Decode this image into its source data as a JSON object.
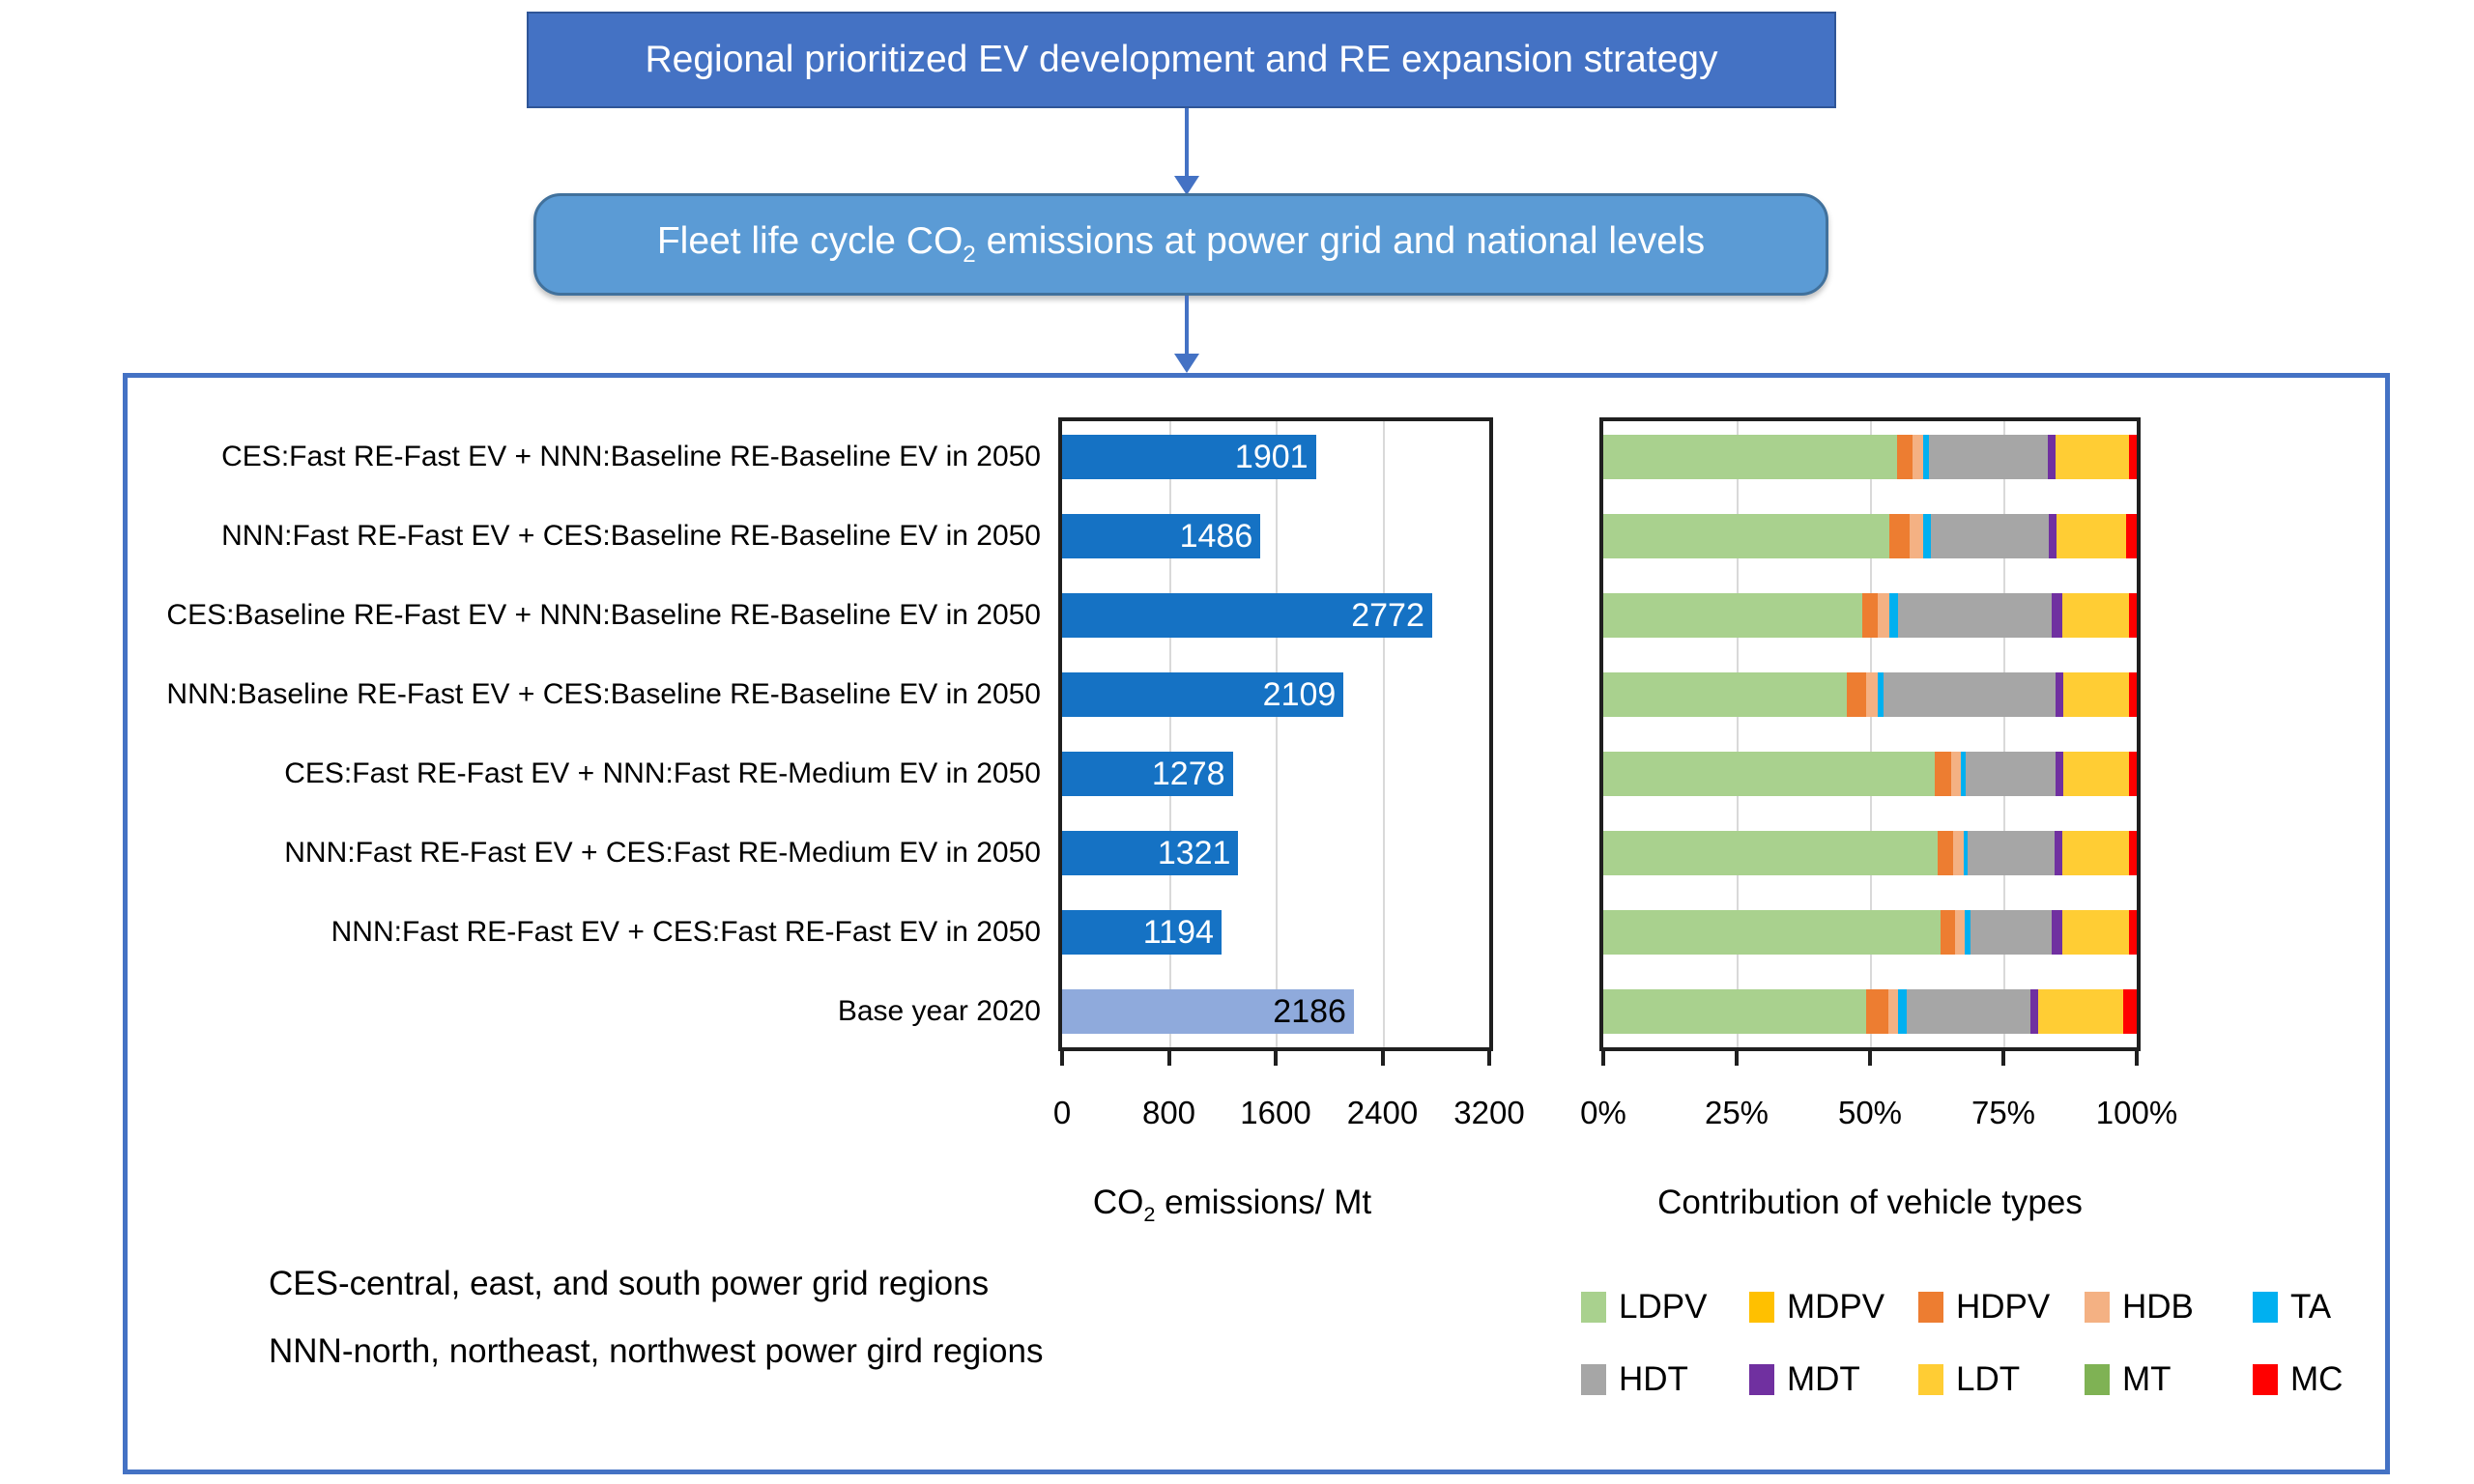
{
  "flowchart": {
    "top_box": "Regional prioritized EV development and RE expansion strategy",
    "mid_box_pre": "Fleet life cycle CO",
    "mid_box_sub": "2",
    "mid_box_post": " emissions at power grid and national levels",
    "top_box_fill": "#4472C4",
    "mid_box_fill": "#5B9BD5",
    "arrow_color": "#4472C4"
  },
  "panel_border_color": "#4472C4",
  "notes": {
    "line1": "CES-central, east, and south power grid regions",
    "line2": "NNN-north, northeast, northwest power gird regions"
  },
  "legend": {
    "rows": [
      [
        {
          "label": "LDPV",
          "color": "#A9D18E"
        },
        {
          "label": "MDPV",
          "color": "#FFC000"
        },
        {
          "label": "HDPV",
          "color": "#ED7D31"
        },
        {
          "label": "HDB",
          "color": "#F4B183"
        },
        {
          "label": "TA",
          "color": "#00B0F0"
        }
      ],
      [
        {
          "label": "HDT",
          "color": "#A6A6A6"
        },
        {
          "label": "MDT",
          "color": "#7030A0"
        },
        {
          "label": "LDT",
          "color": "#FFCD34"
        },
        {
          "label": "MT",
          "color": "#7FB254"
        },
        {
          "label": "MC",
          "color": "#FF0000"
        }
      ]
    ]
  },
  "chart_data": [
    {
      "type": "bar",
      "orientation": "horizontal",
      "title": "CO2 emissions/ Mt",
      "title_pre": "CO",
      "title_sub": "2",
      "title_post": " emissions/ Mt",
      "categories": [
        "CES:Fast RE-Fast EV + NNN:Baseline RE-Baseline EV in 2050",
        "NNN:Fast RE-Fast EV + CES:Baseline RE-Baseline EV in 2050",
        "CES:Baseline RE-Fast EV + NNN:Baseline RE-Baseline EV in 2050",
        "NNN:Baseline RE-Fast EV + CES:Baseline RE-Baseline EV in 2050",
        "CES:Fast RE-Fast EV + NNN:Fast RE-Medium EV in 2050",
        "NNN:Fast RE-Fast EV + CES:Fast RE-Medium EV in 2050",
        "NNN:Fast RE-Fast EV + CES:Fast RE-Fast EV in 2050",
        "Base year 2020"
      ],
      "values": [
        1901,
        1486,
        2772,
        2109,
        1278,
        1321,
        1194,
        2186
      ],
      "bar_colors": [
        "#1572C4",
        "#1572C4",
        "#1572C4",
        "#1572C4",
        "#1572C4",
        "#1572C4",
        "#1572C4",
        "#8FAADC"
      ],
      "value_label_colors": [
        "#FFFFFF",
        "#FFFFFF",
        "#FFFFFF",
        "#FFFFFF",
        "#FFFFFF",
        "#FFFFFF",
        "#FFFFFF",
        "#000000"
      ],
      "xlim": [
        0,
        3200
      ],
      "x_ticks": [
        "0",
        "800",
        "1600",
        "2400",
        "3200"
      ],
      "grid": true,
      "legend_position": "none"
    },
    {
      "type": "stacked_bar_100",
      "title": "Contribution of vehicle types",
      "categories": [
        "CES:Fast RE-Fast EV + NNN:Baseline RE-Baseline EV in 2050",
        "NNN:Fast RE-Fast EV + CES:Baseline RE-Baseline EV in 2050",
        "CES:Baseline RE-Fast EV + NNN:Baseline RE-Baseline EV in 2050",
        "NNN:Baseline RE-Fast EV + CES:Baseline RE-Baseline EV in 2050",
        "CES:Fast RE-Fast EV + NNN:Fast RE-Medium EV in 2050",
        "NNN:Fast RE-Fast EV + CES:Fast RE-Medium EV in 2050",
        "NNN:Fast RE-Fast EV + CES:Fast RE-Fast EV in 2050",
        "Base year 2020"
      ],
      "x_ticks": [
        "0%",
        "25%",
        "50%",
        "75%",
        "100%"
      ],
      "xlim_percent": [
        0,
        100
      ],
      "grid": true,
      "legend_position": "below",
      "series": [
        {
          "name": "LDPV",
          "color": "#A9D18E",
          "values": [
            55.0,
            53.7,
            48.5,
            45.6,
            62.2,
            62.6,
            63.3,
            49.3
          ]
        },
        {
          "name": "MDPV",
          "color": "#FFC000",
          "values": [
            0,
            0,
            0,
            0,
            0,
            0,
            0,
            0
          ]
        },
        {
          "name": "HDPV",
          "color": "#ED7D31",
          "values": [
            3.0,
            3.7,
            3.0,
            3.7,
            3.0,
            3.0,
            2.6,
            4.1
          ]
        },
        {
          "name": "HDB",
          "color": "#F4B183",
          "values": [
            1.9,
            2.6,
            2.2,
            2.2,
            1.9,
            1.9,
            1.9,
            1.9
          ]
        },
        {
          "name": "TA",
          "color": "#00B0F0",
          "values": [
            1.1,
            1.5,
            1.5,
            1.1,
            0.8,
            0.8,
            1.1,
            1.5
          ]
        },
        {
          "name": "HDT",
          "color": "#A6A6A6",
          "values": [
            22.3,
            22.0,
            28.9,
            32.2,
            16.9,
            16.3,
            15.2,
            23.3
          ]
        },
        {
          "name": "MDT",
          "color": "#7030A0",
          "values": [
            1.5,
            1.5,
            1.9,
            1.4,
            1.5,
            1.5,
            1.9,
            1.5
          ]
        },
        {
          "name": "LDT",
          "color": "#FFCD34",
          "values": [
            13.7,
            13.0,
            12.5,
            12.3,
            12.2,
            12.4,
            12.5,
            15.8
          ]
        },
        {
          "name": "MT",
          "color": "#7FB254",
          "values": [
            0,
            0,
            0,
            0,
            0,
            0,
            0,
            0
          ]
        },
        {
          "name": "MC",
          "color": "#FF0000",
          "values": [
            1.5,
            2.0,
            1.5,
            1.5,
            1.5,
            1.5,
            1.5,
            2.6
          ]
        }
      ]
    }
  ]
}
